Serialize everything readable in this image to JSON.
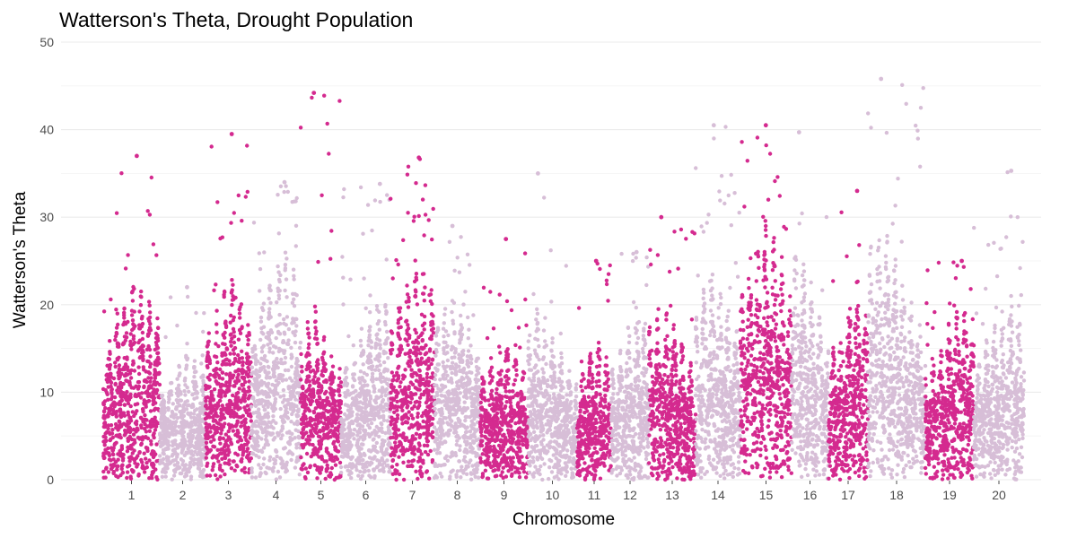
{
  "chart_data": {
    "type": "scatter",
    "title": "Watterson's Theta, Drought Population",
    "xlabel": "Chromosome",
    "ylabel": "Watterson's Theta",
    "ylim": [
      0,
      50
    ],
    "y_ticks": [
      0,
      10,
      20,
      30,
      40,
      50
    ],
    "grid": true,
    "legend": "none",
    "colors": {
      "odd": "#d42a8f",
      "even": "#d7bed7"
    },
    "chromosomes": [
      {
        "label": "1",
        "peak_max": 37.0,
        "typical_max": 24,
        "color": "odd"
      },
      {
        "label": "2",
        "peak_max": 22.0,
        "typical_max": 15,
        "color": "even"
      },
      {
        "label": "3",
        "peak_max": 39.5,
        "typical_max": 24,
        "color": "odd"
      },
      {
        "label": "4",
        "peak_max": 34.0,
        "typical_max": 28,
        "color": "even"
      },
      {
        "label": "5",
        "peak_max": 44.2,
        "typical_max": 20,
        "color": "odd"
      },
      {
        "label": "6",
        "peak_max": 33.8,
        "typical_max": 22,
        "color": "even"
      },
      {
        "label": "7",
        "peak_max": 36.8,
        "typical_max": 27,
        "color": "odd"
      },
      {
        "label": "8",
        "peak_max": 29.0,
        "typical_max": 22,
        "color": "even"
      },
      {
        "label": "9",
        "peak_max": 27.5,
        "typical_max": 17,
        "color": "odd"
      },
      {
        "label": "10",
        "peak_max": 35.0,
        "typical_max": 20,
        "color": "even"
      },
      {
        "label": "11",
        "peak_max": 25.0,
        "typical_max": 17,
        "color": "odd"
      },
      {
        "label": "12",
        "peak_max": 26.0,
        "typical_max": 20,
        "color": "even"
      },
      {
        "label": "13",
        "peak_max": 30.0,
        "typical_max": 21,
        "color": "odd"
      },
      {
        "label": "14",
        "peak_max": 40.5,
        "typical_max": 25,
        "color": "even"
      },
      {
        "label": "15",
        "peak_max": 40.5,
        "typical_max": 30,
        "color": "odd"
      },
      {
        "label": "16",
        "peak_max": 39.7,
        "typical_max": 28,
        "color": "even"
      },
      {
        "label": "17",
        "peak_max": 33.0,
        "typical_max": 23,
        "color": "odd"
      },
      {
        "label": "18",
        "peak_max": 45.8,
        "typical_max": 30,
        "color": "even"
      },
      {
        "label": "19",
        "peak_max": 25.0,
        "typical_max": 21,
        "color": "odd"
      },
      {
        "label": "20",
        "peak_max": 35.3,
        "typical_max": 22,
        "color": "even"
      }
    ]
  }
}
